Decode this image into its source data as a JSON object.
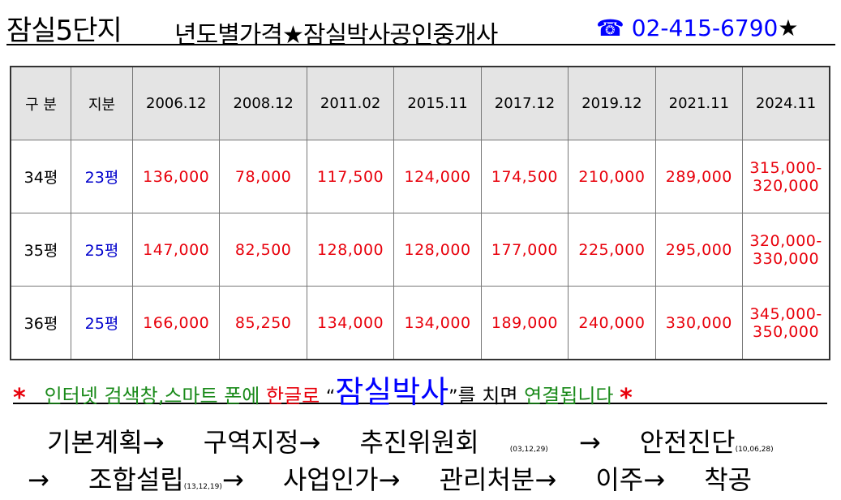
{
  "header": {
    "title": "잠실5단지",
    "subtitle": "년도별가격★잠실박사공인중개사",
    "phone_icon": "☎",
    "phone": "02-415-6790",
    "trail_star": "★"
  },
  "table": {
    "columns": [
      "구 분",
      "지분",
      "2006.12",
      "2008.12",
      "2011.02",
      "2015.11",
      "2017.12",
      "2019.12",
      "2021.11",
      "2024.11"
    ],
    "rows": [
      {
        "area": "34평",
        "share": "23평",
        "prices": [
          "136,000",
          "78,000",
          "117,500",
          "124,000",
          "174,500",
          "210,000",
          "289,000"
        ],
        "last1": "315,000-",
        "last2": "320,000"
      },
      {
        "area": "35평",
        "share": "25평",
        "prices": [
          "147,000",
          "82,500",
          "128,000",
          "128,000",
          "177,000",
          "225,000",
          "295,000"
        ],
        "last1": "320,000-",
        "last2": "330,000"
      },
      {
        "area": "36평",
        "share": "25평",
        "prices": [
          "166,000",
          "85,250",
          "134,000",
          "134,000",
          "189,000",
          "240,000",
          "330,000"
        ],
        "last1": "345,000-",
        "last2": "350,000"
      }
    ]
  },
  "note": {
    "star": "*",
    "part1": "인터넷 검색창,스마트 폰에",
    "part2": "한글로",
    "quote_open": "“",
    "brand": "잠실박사",
    "quote_close": "”",
    "part3": "를 치면",
    "part4": "연결됩니다"
  },
  "steps": {
    "s1": "기본계획→",
    "s2": "구역지정→",
    "s3": "추진위원회",
    "s3_date": "(03,12,29)",
    "s3_arrow": "→",
    "s4": "안전진단",
    "s4_date": "(10,06,28)",
    "s5_arrow": "→",
    "s5": "조합설립",
    "s5_date": "(13,12,19)",
    "s5_after": "→",
    "s6": "사업인가→",
    "s7": "관리처분→",
    "s8": "이주→",
    "s9": "착공"
  }
}
